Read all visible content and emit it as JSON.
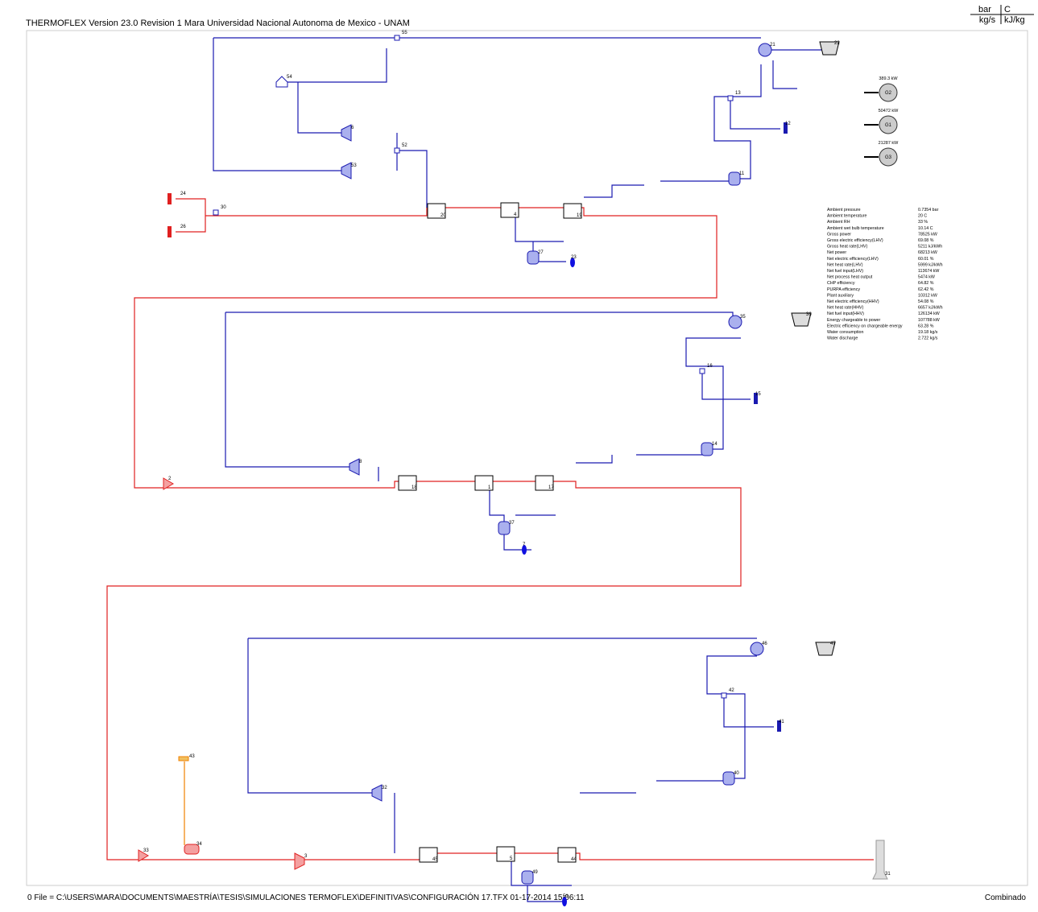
{
  "header": {
    "title": "THERMOFLEX Version 23.0  Revision 1   Mara  Universidad Nacional Autonoma de Mexico - UNAM"
  },
  "units": {
    "top_left": "bar",
    "top_right": "C",
    "bottom_left": "kg/s",
    "bottom_right": "kJ/kg"
  },
  "generators": [
    {
      "label": "G2",
      "power": "389.3 kW"
    },
    {
      "label": "G1",
      "power": "50472 kW"
    },
    {
      "label": "G3",
      "power": "21287 kW"
    }
  ],
  "summary": [
    [
      "Ambient pressure",
      "0.7354 bar"
    ],
    [
      "Ambient temperature",
      "20 C"
    ],
    [
      "Ambient RH",
      "33 %"
    ],
    [
      "Ambient wet bulb temperature",
      "10.14 C"
    ],
    [
      "Gross power",
      "78525 kW"
    ],
    [
      "Gross electric efficiency(LHV)",
      "69.08 %"
    ],
    [
      "Gross heat rate(LHV)",
      "5211 kJ/kWh"
    ],
    [
      "Net power",
      "68213 kW"
    ],
    [
      "Net electric efficiency(LHV)",
      "60.01 %"
    ],
    [
      "Net heat rate(LHV)",
      "5999 kJ/kWh"
    ],
    [
      "Net fuel input(LHV)",
      "113674 kW"
    ],
    [
      "Net process heat output",
      "5474 kW"
    ],
    [
      "CHP efficiency",
      "64.82 %"
    ],
    [
      "PURPA efficiency",
      "62.42 %"
    ],
    [
      "Plant auxiliary",
      "10312 kW"
    ],
    [
      "Net electric efficiency(HHV)",
      "54.08 %"
    ],
    [
      "Net heat rate(HHV)",
      "6657 kJ/kWh"
    ],
    [
      "Net fuel input(HHV)",
      "126134 kW"
    ],
    [
      "Energy chargeable to power",
      "107788 kW"
    ],
    [
      "Electric efficiency on chargeable energy",
      "63.28 %"
    ],
    [
      "Water consumption",
      "19.18 kg/s"
    ],
    [
      "Water discharge",
      "2.722 kg/s"
    ]
  ],
  "nodes": [
    {
      "label": "55"
    },
    {
      "label": "21"
    },
    {
      "label": "22"
    },
    {
      "label": "54"
    },
    {
      "label": "6"
    },
    {
      "label": "52"
    },
    {
      "label": "53"
    },
    {
      "label": "13"
    },
    {
      "label": "12"
    },
    {
      "label": "11"
    },
    {
      "label": "20"
    },
    {
      "label": "4"
    },
    {
      "label": "19"
    },
    {
      "label": "27"
    },
    {
      "label": "23"
    },
    {
      "label": "24"
    },
    {
      "label": "26"
    },
    {
      "label": "30"
    },
    {
      "label": "2"
    },
    {
      "label": "8"
    },
    {
      "label": "18"
    },
    {
      "label": "1"
    },
    {
      "label": "17"
    },
    {
      "label": "37"
    },
    {
      "label": "7"
    },
    {
      "label": "35"
    },
    {
      "label": "36"
    },
    {
      "label": "16"
    },
    {
      "label": "15"
    },
    {
      "label": "14"
    },
    {
      "label": "33"
    },
    {
      "label": "34"
    },
    {
      "label": "43"
    },
    {
      "label": "3"
    },
    {
      "label": "32"
    },
    {
      "label": "45"
    },
    {
      "label": "5"
    },
    {
      "label": "44"
    },
    {
      "label": "49"
    },
    {
      "label": "51"
    },
    {
      "label": "46"
    },
    {
      "label": "47"
    },
    {
      "label": "42"
    },
    {
      "label": "41"
    },
    {
      "label": "40"
    },
    {
      "label": "31"
    }
  ],
  "footer": {
    "file": "0 File = C:\\USERS\\MARA\\DOCUMENTS\\MAESTRÍA\\TESIS\\SIMULACIONES TERMOFLEX\\DEFINITIVAS\\CONFIGURACIÓN 17.TFX  01-17-2014 15:06:11",
    "mode": "Combinado"
  }
}
